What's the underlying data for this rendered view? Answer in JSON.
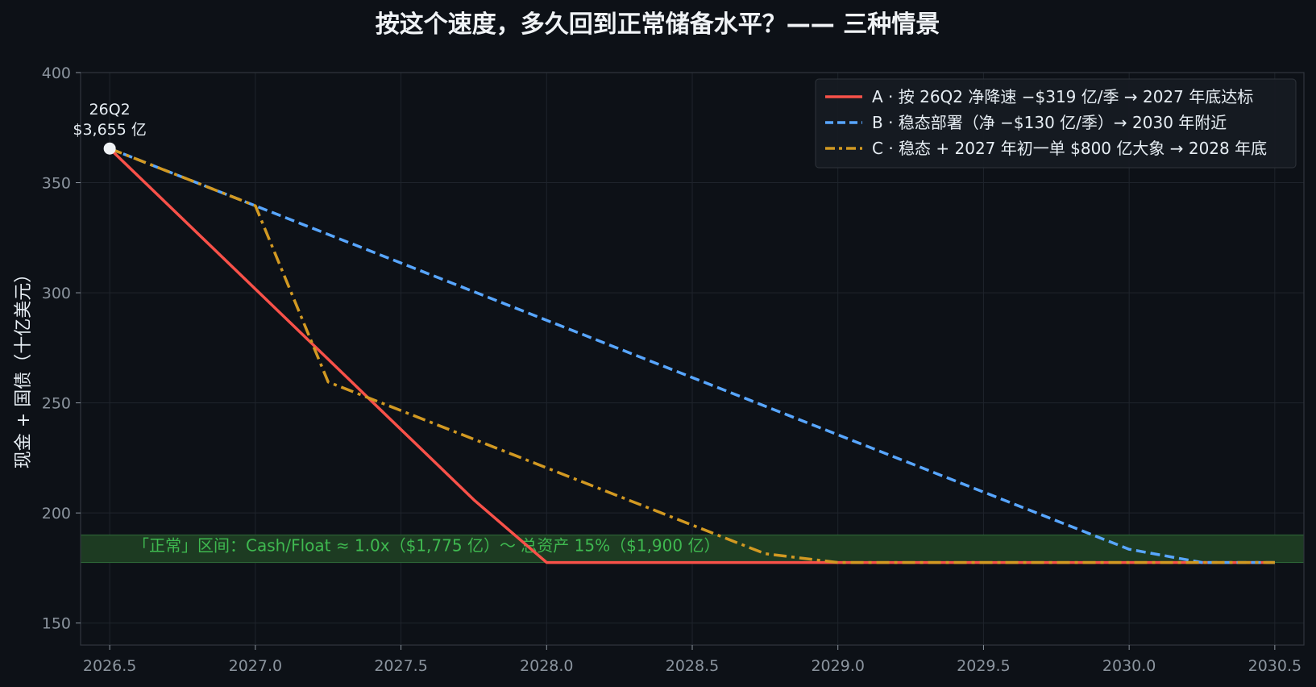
{
  "chart_data": {
    "type": "line",
    "title": "按这个速度，多久回到正常储备水平？—— 三种情景",
    "xlabel": "",
    "ylabel": "现金 + 国债（十亿美元）",
    "xlim": [
      2026.4,
      2030.6
    ],
    "ylim": [
      140,
      400
    ],
    "xticks": [
      2026.5,
      2027.0,
      2027.5,
      2028.0,
      2028.5,
      2029.0,
      2029.5,
      2030.0,
      2030.5
    ],
    "xtick_labels": [
      "2026.5",
      "2027.0",
      "2027.5",
      "2028.0",
      "2028.5",
      "2029.0",
      "2029.5",
      "2030.0",
      "2030.5"
    ],
    "yticks": [
      150,
      200,
      250,
      300,
      350,
      400
    ],
    "ytick_labels": [
      "150",
      "200",
      "250",
      "300",
      "350",
      "400"
    ],
    "grid": true,
    "legend_position": "top-right",
    "band": {
      "y0": 177.5,
      "y1": 190,
      "color": "#1d3b22",
      "label": "「正常」区间：Cash/Float ≈ 1.0x（$1,775 亿）～ 总资产 15%（$1,900 亿）"
    },
    "annotation": {
      "x": 2026.5,
      "y": 365.5,
      "line1": "26Q2",
      "line2": "$3,655 亿"
    },
    "series": [
      {
        "name": "A · 按 26Q2 净降速 −$319 亿/季 → 2027 年底达标",
        "color": "#f85149",
        "style": "solid",
        "x": [
          2026.5,
          2027.25,
          2027.75,
          2028.0,
          2030.5
        ],
        "y": [
          365.5,
          269.8,
          206.0,
          177.5,
          177.5
        ]
      },
      {
        "name": "B · 稳态部署（净 −$130 亿/季）→ 2030 年附近",
        "color": "#58a6ff",
        "style": "dashed",
        "x": [
          2026.5,
          2027.0,
          2028.0,
          2029.0,
          2030.0,
          2030.25,
          2030.5
        ],
        "y": [
          365.5,
          339.5,
          287.5,
          235.5,
          183.5,
          177.5,
          177.5
        ]
      },
      {
        "name": "C · 稳态 + 2027 年初一单 $800 亿大象 → 2028 年底",
        "color": "#d29922",
        "style": "dashdot",
        "x": [
          2026.5,
          2027.0,
          2027.25,
          2028.0,
          2028.5,
          2028.75,
          2029.0,
          2030.5
        ],
        "y": [
          365.5,
          339.5,
          259.5,
          220.5,
          194.5,
          181.5,
          177.5,
          177.5
        ]
      }
    ]
  }
}
